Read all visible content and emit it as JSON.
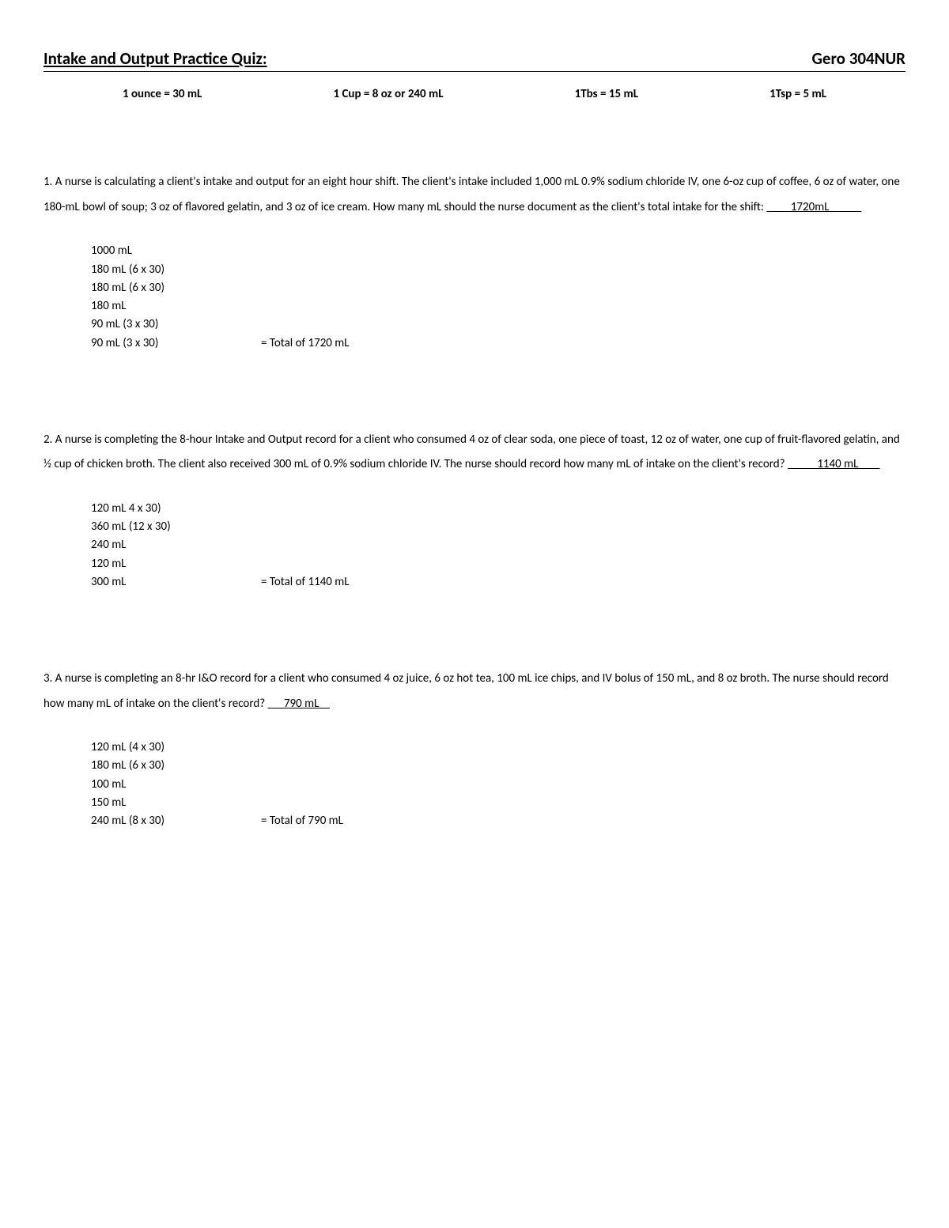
{
  "header": {
    "title": "Intake and Output Practice Quiz:",
    "course": "Gero 304NUR"
  },
  "conversions": [
    "1 ounce = 30 mL",
    "1 Cup = 8 oz or 240 mL",
    "1Tbs = 15 mL",
    "1Tsp = 5 mL"
  ],
  "questions": [
    {
      "num": "1.",
      "text_a": " A nurse is calculating a client's intake and output for an eight hour shift.  The client's intake included 1,000 mL 0.9% sodium chloride IV, one 6-oz cup of coffee, 6 oz of water, one 180-mL bowl of soup; 3 oz of flavored gelatin, and 3 oz of ice cream.  How many mL should the nurse document as the client's total intake for the shift:  ",
      "answer_pre": "         ",
      "answer": "1720mL",
      "answer_post": "            ",
      "work": [
        {
          "a": "1000 mL",
          "b": ""
        },
        {
          "a": "180 mL (6 x 30)",
          "b": ""
        },
        {
          "a": "180 mL (6 x 30)",
          "b": ""
        },
        {
          "a": "180 mL",
          "b": ""
        },
        {
          "a": "90 mL (3 x 30)",
          "b": ""
        },
        {
          "a": "90 mL (3 x 30)",
          "b": "= Total of 1720 mL"
        }
      ]
    },
    {
      "num": "2.",
      "text_a": " A nurse is completing the 8-hour Intake and Output record for a client who consumed 4 oz of clear soda, one piece of toast, 12 oz of water, one cup of fruit-flavored gelatin, and ½ cup of chicken broth.  The client also received 300 mL of 0.9% sodium chloride IV.  The nurse should record how many mL of intake on the client's record?  ",
      "answer_pre": "           ",
      "answer": "1140 mL",
      "answer_post": "        ",
      "work": [
        {
          "a": "120 mL 4 x 30)",
          "b": ""
        },
        {
          "a": "360 mL (12 x 30)",
          "b": ""
        },
        {
          "a": "240 mL",
          "b": ""
        },
        {
          "a": "120 mL",
          "b": ""
        },
        {
          "a": "300 mL",
          "b": "= Total of 1140 mL"
        }
      ]
    },
    {
      "num": "3.",
      "text_a": " A nurse is completing an 8-hr I&O record for a client who consumed 4 oz juice, 6 oz hot tea, 100 mL ice chips, and IV bolus of 150 mL, and 8 oz broth.  The nurse should record how many mL of intake on the client's record?   ",
      "answer_pre": "      ",
      "answer": "790 mL",
      "answer_post": "    ",
      "work": [
        {
          "a": "120 mL (4 x 30)",
          "b": ""
        },
        {
          "a": "180 mL (6 x 30)",
          "b": ""
        },
        {
          "a": "100 mL",
          "b": ""
        },
        {
          "a": "150 mL",
          "b": ""
        },
        {
          "a": "240 mL (8 x 30)",
          "b": "= Total of 790 mL"
        }
      ]
    }
  ]
}
